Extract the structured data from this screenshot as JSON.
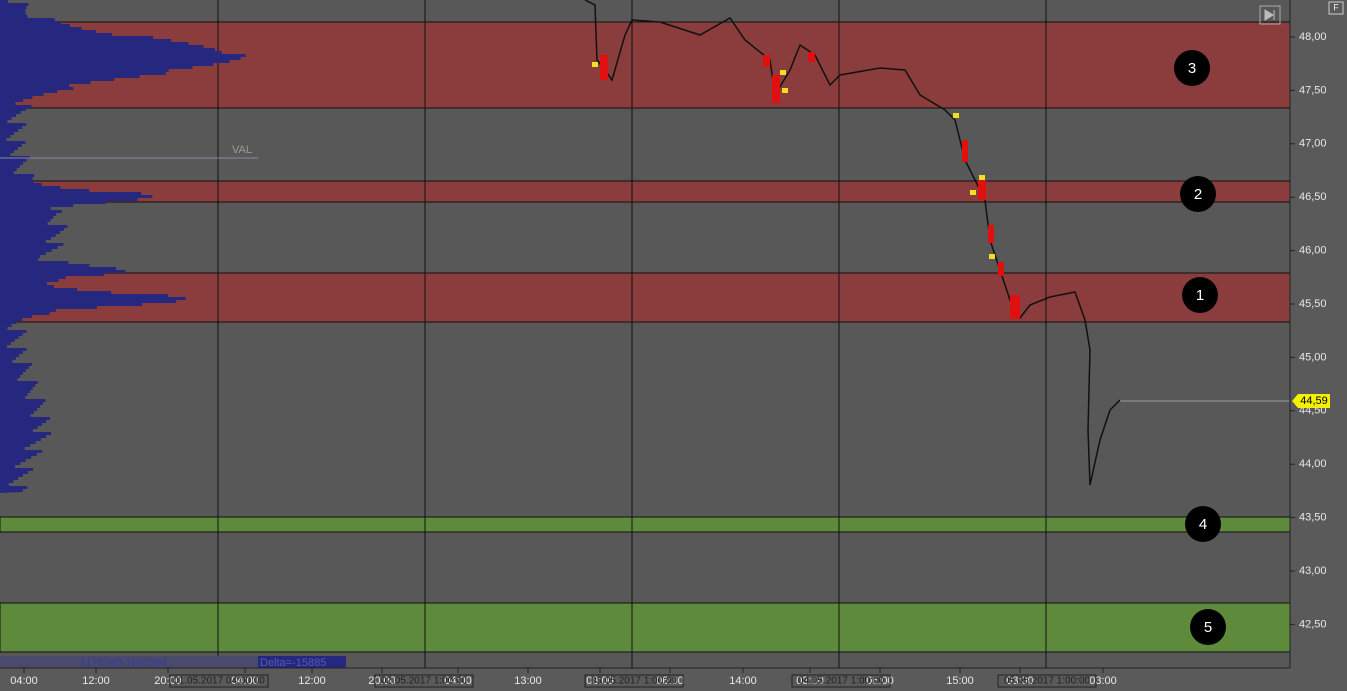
{
  "y_axis": {
    "labels": [
      "48,00",
      "47,50",
      "47,00",
      "46,50",
      "46,00",
      "45,50",
      "45,00",
      "44,50",
      "44,00",
      "43,50",
      "43,00",
      "42,50"
    ]
  },
  "x_axis": {
    "labels": [
      "04:00",
      "12:00",
      "20:00",
      "04:00",
      "12:00",
      "20:00",
      "04:00",
      "13:00",
      "03:00",
      "06:00",
      "14:00",
      "03:00",
      "06:00",
      "15:00",
      "03:00",
      "03:00"
    ]
  },
  "date_labels": [
    "01.05.2017 04:00:00",
    "02.05.2017 1:00:00",
    "03.05.2017 1:00:00",
    "04.05.2017 1:00:00",
    "05.05.2017 1:00:00"
  ],
  "zones": [
    {
      "label": "3"
    },
    {
      "label": "2"
    },
    {
      "label": "1"
    },
    {
      "label": "4"
    },
    {
      "label": "5"
    }
  ],
  "profile": {
    "val_label": "VAL",
    "volume_text": "1176249 1160364",
    "delta_text": "Delta=-15885"
  },
  "price_tag": "44,59",
  "corner_button": "F"
}
